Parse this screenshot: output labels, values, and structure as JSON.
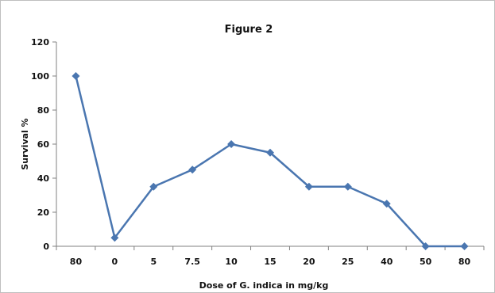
{
  "chart_data": {
    "type": "line",
    "title": "Figure 2",
    "xlabel": "Dose of G. indica in mg/kg",
    "ylabel": "Survival %",
    "categories": [
      "80",
      "0",
      "5",
      "7.5",
      "10",
      "15",
      "20",
      "25",
      "40",
      "50",
      "80"
    ],
    "series": [
      {
        "values": [
          100,
          5,
          35,
          45,
          60,
          55,
          35,
          35,
          25,
          0,
          0
        ]
      }
    ],
    "ylim": [
      0,
      120
    ],
    "yticks": [
      0,
      20,
      40,
      60,
      80,
      100,
      120
    ],
    "grid": false,
    "legend": "none",
    "colors": {
      "series": "#4a76b0",
      "axis": "#808080",
      "border": "#bfbfbf"
    }
  }
}
